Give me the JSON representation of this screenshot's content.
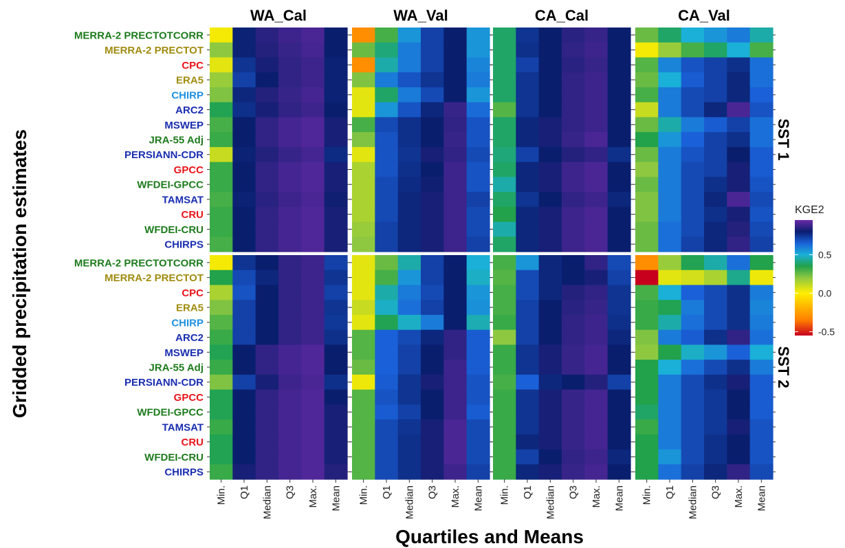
{
  "chart_data": {
    "type": "heatmap",
    "xlabel": "Quartiles and Means",
    "ylabel": "Gridded precipitation estimates",
    "facets": [
      "WA_Cal",
      "WA_Val",
      "CA_Cal",
      "CA_Val"
    ],
    "strips": [
      "SST 1",
      "SST 2"
    ],
    "columns": [
      "Min.",
      "Q1",
      "Median",
      "Q3",
      "Max.",
      "Mean"
    ],
    "rows": [
      {
        "label": "MERRA-2 PRECTOTCORR",
        "color": "#1e7b1e"
      },
      {
        "label": "MERRA-2 PRECTOT",
        "color": "#a08c10"
      },
      {
        "label": "CPC",
        "color": "#e8141a"
      },
      {
        "label": "ERA5",
        "color": "#a08c10"
      },
      {
        "label": "CHIRP",
        "color": "#1e90e0"
      },
      {
        "label": "ARC2",
        "color": "#1a2eb0"
      },
      {
        "label": "MSWEP",
        "color": "#1a2eb0"
      },
      {
        "label": "JRA-55 Adj",
        "color": "#1e7b1e"
      },
      {
        "label": "PERSIANN-CDR",
        "color": "#1a2eb0"
      },
      {
        "label": "GPCC",
        "color": "#e8141a"
      },
      {
        "label": "WFDEI-GPCC",
        "color": "#1e7b1e"
      },
      {
        "label": "TAMSAT",
        "color": "#1a2eb0"
      },
      {
        "label": "CRU",
        "color": "#e8141a"
      },
      {
        "label": "WFDEI-CRU",
        "color": "#1e7b1e"
      },
      {
        "label": "CHIRPS",
        "color": "#1a2eb0"
      }
    ],
    "legend": {
      "title": "KGE2",
      "ticks": [
        0.5,
        0.0,
        -0.5
      ],
      "tick_labels": [
        "0.5",
        "0.0",
        "-0.5"
      ],
      "range": [
        -0.55,
        0.95
      ]
    },
    "color_stops": [
      {
        "v": -0.55,
        "c": "#c8001e"
      },
      {
        "v": -0.35,
        "c": "#ff7e00"
      },
      {
        "v": 0.0,
        "c": "#ffee00"
      },
      {
        "v": 0.2,
        "c": "#8ec841"
      },
      {
        "v": 0.35,
        "c": "#22a24a"
      },
      {
        "v": 0.5,
        "c": "#1ab0d8"
      },
      {
        "v": 0.65,
        "c": "#1a60d8"
      },
      {
        "v": 0.8,
        "c": "#0a1e6e"
      },
      {
        "v": 0.95,
        "c": "#6a2aa8"
      }
    ],
    "values": {
      "SST 1": {
        "WA_Cal": [
          [
            0.02,
            0.79,
            0.85,
            0.88,
            0.9,
            0.8
          ],
          [
            0.2,
            0.79,
            0.84,
            0.87,
            0.89,
            0.8
          ],
          [
            0.05,
            0.75,
            0.82,
            0.86,
            0.88,
            0.79
          ],
          [
            0.18,
            0.72,
            0.8,
            0.86,
            0.88,
            0.79
          ],
          [
            0.22,
            0.78,
            0.84,
            0.87,
            0.89,
            0.79
          ],
          [
            0.36,
            0.76,
            0.82,
            0.86,
            0.88,
            0.8
          ],
          [
            0.3,
            0.8,
            0.86,
            0.89,
            0.91,
            0.82
          ],
          [
            0.32,
            0.8,
            0.86,
            0.89,
            0.91,
            0.82
          ],
          [
            0.1,
            0.79,
            0.84,
            0.87,
            0.89,
            0.77
          ],
          [
            0.32,
            0.8,
            0.86,
            0.89,
            0.91,
            0.82
          ],
          [
            0.32,
            0.8,
            0.86,
            0.89,
            0.91,
            0.82
          ],
          [
            0.3,
            0.79,
            0.85,
            0.88,
            0.9,
            0.81
          ],
          [
            0.32,
            0.8,
            0.86,
            0.89,
            0.91,
            0.82
          ],
          [
            0.32,
            0.8,
            0.86,
            0.89,
            0.91,
            0.82
          ],
          [
            0.3,
            0.8,
            0.86,
            0.89,
            0.91,
            0.82
          ]
        ],
        "WA_Val": [
          [
            -0.3,
            0.3,
            0.55,
            0.72,
            0.8,
            0.55
          ],
          [
            0.25,
            0.4,
            0.6,
            0.72,
            0.8,
            0.55
          ],
          [
            -0.3,
            0.45,
            0.6,
            0.72,
            0.8,
            0.58
          ],
          [
            0.22,
            0.6,
            0.68,
            0.75,
            0.8,
            0.6
          ],
          [
            0.05,
            0.38,
            0.6,
            0.7,
            0.8,
            0.55
          ],
          [
            0.05,
            0.55,
            0.68,
            0.78,
            0.87,
            0.63
          ],
          [
            0.3,
            0.7,
            0.76,
            0.8,
            0.86,
            0.68
          ],
          [
            0.22,
            0.68,
            0.76,
            0.8,
            0.87,
            0.68
          ],
          [
            0.05,
            0.68,
            0.75,
            0.82,
            0.86,
            0.7
          ],
          [
            0.15,
            0.68,
            0.76,
            0.8,
            0.88,
            0.68
          ],
          [
            0.15,
            0.7,
            0.77,
            0.81,
            0.88,
            0.68
          ],
          [
            0.15,
            0.7,
            0.78,
            0.82,
            0.88,
            0.72
          ],
          [
            0.15,
            0.7,
            0.78,
            0.82,
            0.88,
            0.7
          ],
          [
            0.18,
            0.72,
            0.78,
            0.82,
            0.88,
            0.7
          ],
          [
            0.2,
            0.72,
            0.78,
            0.82,
            0.88,
            0.72
          ]
        ],
        "CA_Cal": [
          [
            0.38,
            0.75,
            0.8,
            0.85,
            0.87,
            0.8
          ],
          [
            0.38,
            0.76,
            0.8,
            0.86,
            0.88,
            0.8
          ],
          [
            0.38,
            0.72,
            0.8,
            0.85,
            0.87,
            0.8
          ],
          [
            0.38,
            0.75,
            0.8,
            0.86,
            0.88,
            0.8
          ],
          [
            0.38,
            0.75,
            0.8,
            0.86,
            0.88,
            0.8
          ],
          [
            0.28,
            0.75,
            0.8,
            0.86,
            0.88,
            0.8
          ],
          [
            0.38,
            0.78,
            0.82,
            0.86,
            0.88,
            0.8
          ],
          [
            0.38,
            0.78,
            0.82,
            0.87,
            0.9,
            0.8
          ],
          [
            0.4,
            0.72,
            0.8,
            0.84,
            0.86,
            0.76
          ],
          [
            0.38,
            0.78,
            0.82,
            0.88,
            0.9,
            0.8
          ],
          [
            0.45,
            0.78,
            0.82,
            0.88,
            0.9,
            0.8
          ],
          [
            0.38,
            0.75,
            0.8,
            0.86,
            0.88,
            0.78
          ],
          [
            0.35,
            0.78,
            0.82,
            0.88,
            0.9,
            0.8
          ],
          [
            0.45,
            0.78,
            0.82,
            0.88,
            0.9,
            0.8
          ],
          [
            0.38,
            0.78,
            0.82,
            0.88,
            0.9,
            0.8
          ]
        ],
        "CA_Val": [
          [
            0.25,
            0.38,
            0.5,
            0.55,
            0.6,
            0.45
          ],
          [
            0.02,
            0.18,
            0.3,
            0.38,
            0.5,
            0.3
          ],
          [
            0.28,
            0.58,
            0.68,
            0.72,
            0.76,
            0.62
          ],
          [
            0.25,
            0.5,
            0.66,
            0.72,
            0.78,
            0.62
          ],
          [
            0.3,
            0.6,
            0.7,
            0.72,
            0.78,
            0.65
          ],
          [
            0.1,
            0.6,
            0.7,
            0.78,
            0.9,
            0.68
          ],
          [
            0.25,
            0.45,
            0.6,
            0.66,
            0.72,
            0.62
          ],
          [
            0.35,
            0.55,
            0.65,
            0.72,
            0.76,
            0.62
          ],
          [
            0.25,
            0.6,
            0.68,
            0.72,
            0.8,
            0.66
          ],
          [
            0.2,
            0.6,
            0.7,
            0.72,
            0.82,
            0.66
          ],
          [
            0.25,
            0.6,
            0.7,
            0.76,
            0.82,
            0.68
          ],
          [
            0.22,
            0.6,
            0.7,
            0.78,
            0.9,
            0.7
          ],
          [
            0.22,
            0.6,
            0.7,
            0.76,
            0.82,
            0.68
          ],
          [
            0.25,
            0.62,
            0.7,
            0.78,
            0.84,
            0.7
          ],
          [
            0.25,
            0.62,
            0.72,
            0.78,
            0.86,
            0.72
          ]
        ]
      },
      "SST 2": {
        "WA_Cal": [
          [
            0.02,
            0.75,
            0.8,
            0.86,
            0.88,
            0.72
          ],
          [
            0.35,
            0.7,
            0.78,
            0.86,
            0.88,
            0.75
          ],
          [
            0.15,
            0.68,
            0.8,
            0.86,
            0.88,
            0.72
          ],
          [
            0.22,
            0.72,
            0.8,
            0.86,
            0.88,
            0.75
          ],
          [
            0.28,
            0.72,
            0.8,
            0.86,
            0.88,
            0.74
          ],
          [
            0.32,
            0.72,
            0.8,
            0.86,
            0.88,
            0.76
          ],
          [
            0.36,
            0.8,
            0.86,
            0.89,
            0.91,
            0.8
          ],
          [
            0.32,
            0.8,
            0.86,
            0.89,
            0.91,
            0.8
          ],
          [
            0.22,
            0.72,
            0.82,
            0.88,
            0.9,
            0.76
          ],
          [
            0.36,
            0.8,
            0.86,
            0.89,
            0.91,
            0.8
          ],
          [
            0.36,
            0.8,
            0.86,
            0.89,
            0.91,
            0.82
          ],
          [
            0.32,
            0.8,
            0.86,
            0.89,
            0.91,
            0.82
          ],
          [
            0.36,
            0.8,
            0.86,
            0.89,
            0.91,
            0.82
          ],
          [
            0.36,
            0.8,
            0.86,
            0.89,
            0.91,
            0.82
          ],
          [
            0.32,
            0.82,
            0.86,
            0.89,
            0.91,
            0.84
          ]
        ],
        "WA_Val": [
          [
            0.05,
            0.25,
            0.45,
            0.72,
            0.8,
            0.5
          ],
          [
            0.05,
            0.3,
            0.55,
            0.72,
            0.8,
            0.48
          ],
          [
            0.05,
            0.45,
            0.6,
            0.7,
            0.8,
            0.55
          ],
          [
            0.1,
            0.48,
            0.62,
            0.72,
            0.8,
            0.56
          ],
          [
            0.05,
            0.36,
            0.48,
            0.6,
            0.8,
            0.46
          ],
          [
            0.28,
            0.65,
            0.7,
            0.78,
            0.86,
            0.66
          ],
          [
            0.28,
            0.65,
            0.72,
            0.8,
            0.86,
            0.66
          ],
          [
            0.25,
            0.65,
            0.72,
            0.8,
            0.88,
            0.66
          ],
          [
            0.03,
            0.66,
            0.75,
            0.82,
            0.88,
            0.68
          ],
          [
            0.28,
            0.68,
            0.75,
            0.8,
            0.88,
            0.68
          ],
          [
            0.28,
            0.66,
            0.72,
            0.8,
            0.88,
            0.66
          ],
          [
            0.28,
            0.7,
            0.75,
            0.82,
            0.9,
            0.7
          ],
          [
            0.28,
            0.7,
            0.76,
            0.82,
            0.9,
            0.7
          ],
          [
            0.28,
            0.7,
            0.76,
            0.82,
            0.9,
            0.7
          ],
          [
            0.28,
            0.7,
            0.76,
            0.82,
            0.88,
            0.72
          ]
        ],
        "CA_Cal": [
          [
            0.3,
            0.55,
            0.78,
            0.8,
            0.86,
            0.7
          ],
          [
            0.28,
            0.7,
            0.78,
            0.8,
            0.82,
            0.72
          ],
          [
            0.3,
            0.7,
            0.78,
            0.84,
            0.86,
            0.75
          ],
          [
            0.3,
            0.72,
            0.8,
            0.85,
            0.87,
            0.75
          ],
          [
            0.32,
            0.72,
            0.8,
            0.86,
            0.88,
            0.76
          ],
          [
            0.2,
            0.72,
            0.8,
            0.86,
            0.88,
            0.78
          ],
          [
            0.32,
            0.75,
            0.82,
            0.87,
            0.89,
            0.8
          ],
          [
            0.32,
            0.75,
            0.82,
            0.87,
            0.89,
            0.8
          ],
          [
            0.3,
            0.65,
            0.78,
            0.8,
            0.84,
            0.72
          ],
          [
            0.32,
            0.75,
            0.82,
            0.87,
            0.89,
            0.8
          ],
          [
            0.32,
            0.75,
            0.82,
            0.87,
            0.89,
            0.8
          ],
          [
            0.32,
            0.75,
            0.82,
            0.87,
            0.89,
            0.8
          ],
          [
            0.32,
            0.78,
            0.82,
            0.87,
            0.89,
            0.8
          ],
          [
            0.32,
            0.72,
            0.8,
            0.86,
            0.88,
            0.78
          ],
          [
            0.32,
            0.78,
            0.82,
            0.87,
            0.89,
            0.8
          ]
        ],
        "CA_Val": [
          [
            -0.3,
            0.18,
            0.36,
            0.45,
            0.62,
            0.35
          ],
          [
            -0.55,
            0.05,
            0.08,
            0.15,
            0.42,
            0.03
          ],
          [
            0.3,
            0.5,
            0.65,
            0.7,
            0.76,
            0.6
          ],
          [
            0.32,
            0.36,
            0.6,
            0.7,
            0.76,
            0.58
          ],
          [
            0.32,
            0.45,
            0.62,
            0.7,
            0.76,
            0.6
          ],
          [
            0.22,
            0.6,
            0.66,
            0.76,
            0.86,
            0.62
          ],
          [
            0.2,
            0.35,
            0.48,
            0.55,
            0.65,
            0.5
          ],
          [
            0.35,
            0.5,
            0.62,
            0.7,
            0.76,
            0.6
          ],
          [
            0.35,
            0.6,
            0.7,
            0.76,
            0.82,
            0.66
          ],
          [
            0.35,
            0.6,
            0.7,
            0.74,
            0.8,
            0.66
          ],
          [
            0.38,
            0.6,
            0.7,
            0.74,
            0.8,
            0.66
          ],
          [
            0.32,
            0.6,
            0.7,
            0.74,
            0.82,
            0.68
          ],
          [
            0.35,
            0.6,
            0.7,
            0.76,
            0.8,
            0.68
          ],
          [
            0.35,
            0.55,
            0.7,
            0.76,
            0.8,
            0.68
          ],
          [
            0.35,
            0.62,
            0.72,
            0.78,
            0.86,
            0.7
          ]
        ]
      }
    }
  }
}
